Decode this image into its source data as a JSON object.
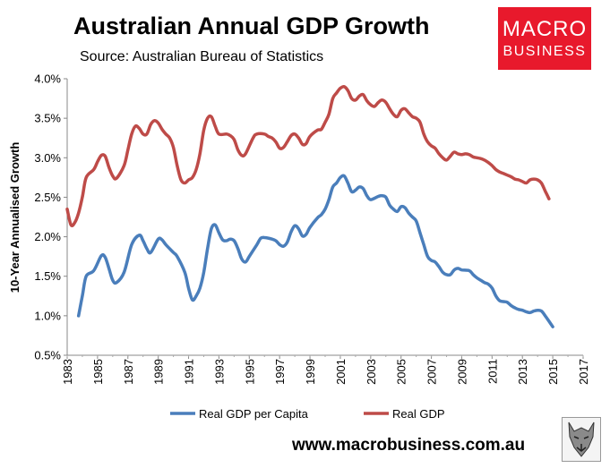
{
  "header": {
    "title": "Australian Annual GDP Growth",
    "subtitle": "Source: Australian Bureau of Statistics"
  },
  "logo": {
    "line1": "MACRO",
    "line2": "BUSINESS",
    "bg_color": "#e8192c"
  },
  "footer": {
    "url": "www.macrobusiness.com.au",
    "icon": "wolf-emblem-icon"
  },
  "chart_data": {
    "type": "line",
    "title": "",
    "xlabel": "",
    "ylabel": "10-Year Annualised Growth",
    "xlim": [
      1983,
      2017
    ],
    "ylim": [
      0.5,
      4.0
    ],
    "x_ticks": [
      "1983",
      "1985",
      "1987",
      "1989",
      "1991",
      "1993",
      "1995",
      "1997",
      "1999",
      "2001",
      "2003",
      "2005",
      "2007",
      "2009",
      "2011",
      "2013",
      "2015",
      "2017"
    ],
    "y_ticks": [
      "0.5%",
      "1.0%",
      "1.5%",
      "2.0%",
      "2.5%",
      "3.0%",
      "3.5%",
      "4.0%"
    ],
    "grid": false,
    "legend": "bottom",
    "series": [
      {
        "name": "Real GDP per Capita",
        "color": "#4a7ebb",
        "points": [
          [
            1983.75,
            1.0
          ],
          [
            1984.0,
            1.25
          ],
          [
            1984.25,
            1.5
          ],
          [
            1984.75,
            1.57
          ],
          [
            1985.25,
            1.76
          ],
          [
            1985.5,
            1.74
          ],
          [
            1985.75,
            1.6
          ],
          [
            1986.0,
            1.45
          ],
          [
            1986.25,
            1.42
          ],
          [
            1986.75,
            1.55
          ],
          [
            1987.25,
            1.9
          ],
          [
            1987.75,
            2.02
          ],
          [
            1988.0,
            1.95
          ],
          [
            1988.25,
            1.85
          ],
          [
            1988.5,
            1.8
          ],
          [
            1989.0,
            1.97
          ],
          [
            1989.25,
            1.96
          ],
          [
            1989.5,
            1.9
          ],
          [
            1990.0,
            1.8
          ],
          [
            1990.25,
            1.75
          ],
          [
            1990.75,
            1.55
          ],
          [
            1991.0,
            1.35
          ],
          [
            1991.25,
            1.2
          ],
          [
            1991.5,
            1.25
          ],
          [
            1991.75,
            1.35
          ],
          [
            1992.0,
            1.55
          ],
          [
            1992.25,
            1.85
          ],
          [
            1992.5,
            2.1
          ],
          [
            1992.75,
            2.15
          ],
          [
            1993.0,
            2.05
          ],
          [
            1993.25,
            1.96
          ],
          [
            1993.5,
            1.95
          ],
          [
            1993.75,
            1.97
          ],
          [
            1994.0,
            1.95
          ],
          [
            1994.25,
            1.85
          ],
          [
            1994.5,
            1.72
          ],
          [
            1994.75,
            1.68
          ],
          [
            1995.0,
            1.75
          ],
          [
            1995.5,
            1.9
          ],
          [
            1995.75,
            1.98
          ],
          [
            1996.0,
            1.99
          ],
          [
            1996.5,
            1.97
          ],
          [
            1996.75,
            1.95
          ],
          [
            1997.0,
            1.9
          ],
          [
            1997.25,
            1.88
          ],
          [
            1997.5,
            1.93
          ],
          [
            1997.75,
            2.06
          ],
          [
            1998.0,
            2.14
          ],
          [
            1998.25,
            2.1
          ],
          [
            1998.5,
            2.01
          ],
          [
            1998.75,
            2.03
          ],
          [
            1999.0,
            2.12
          ],
          [
            1999.5,
            2.24
          ],
          [
            1999.75,
            2.28
          ],
          [
            2000.0,
            2.35
          ],
          [
            2000.25,
            2.47
          ],
          [
            2000.5,
            2.63
          ],
          [
            2000.75,
            2.68
          ],
          [
            2001.0,
            2.75
          ],
          [
            2001.25,
            2.77
          ],
          [
            2001.5,
            2.68
          ],
          [
            2001.75,
            2.57
          ],
          [
            2002.0,
            2.59
          ],
          [
            2002.25,
            2.63
          ],
          [
            2002.5,
            2.61
          ],
          [
            2002.75,
            2.52
          ],
          [
            2003.0,
            2.47
          ],
          [
            2003.5,
            2.51
          ],
          [
            2003.75,
            2.52
          ],
          [
            2004.0,
            2.5
          ],
          [
            2004.25,
            2.4
          ],
          [
            2004.5,
            2.35
          ],
          [
            2004.75,
            2.32
          ],
          [
            2005.0,
            2.38
          ],
          [
            2005.25,
            2.37
          ],
          [
            2005.5,
            2.3
          ],
          [
            2005.75,
            2.25
          ],
          [
            2006.0,
            2.2
          ],
          [
            2006.25,
            2.05
          ],
          [
            2006.5,
            1.9
          ],
          [
            2006.75,
            1.75
          ],
          [
            2007.0,
            1.7
          ],
          [
            2007.25,
            1.68
          ],
          [
            2007.5,
            1.62
          ],
          [
            2007.75,
            1.55
          ],
          [
            2008.0,
            1.52
          ],
          [
            2008.25,
            1.52
          ],
          [
            2008.5,
            1.58
          ],
          [
            2008.75,
            1.6
          ],
          [
            2009.0,
            1.58
          ],
          [
            2009.5,
            1.57
          ],
          [
            2009.75,
            1.52
          ],
          [
            2010.0,
            1.48
          ],
          [
            2010.25,
            1.45
          ],
          [
            2010.5,
            1.42
          ],
          [
            2010.75,
            1.4
          ],
          [
            2011.0,
            1.35
          ],
          [
            2011.25,
            1.25
          ],
          [
            2011.5,
            1.19
          ],
          [
            2011.75,
            1.18
          ],
          [
            2012.0,
            1.17
          ],
          [
            2012.25,
            1.13
          ],
          [
            2012.5,
            1.1
          ],
          [
            2012.75,
            1.08
          ],
          [
            2013.0,
            1.07
          ],
          [
            2013.25,
            1.05
          ],
          [
            2013.5,
            1.04
          ],
          [
            2013.75,
            1.06
          ],
          [
            2014.0,
            1.07
          ],
          [
            2014.25,
            1.06
          ],
          [
            2014.5,
            1.0
          ],
          [
            2014.75,
            0.93
          ],
          [
            2015.0,
            0.86
          ]
        ]
      },
      {
        "name": "Real GDP",
        "color": "#be4b48",
        "points": [
          [
            1983.0,
            2.35
          ],
          [
            1983.25,
            2.15
          ],
          [
            1983.5,
            2.18
          ],
          [
            1983.75,
            2.3
          ],
          [
            1984.0,
            2.5
          ],
          [
            1984.25,
            2.75
          ],
          [
            1984.75,
            2.85
          ],
          [
            1985.0,
            2.95
          ],
          [
            1985.25,
            3.03
          ],
          [
            1985.5,
            3.02
          ],
          [
            1985.75,
            2.88
          ],
          [
            1986.0,
            2.77
          ],
          [
            1986.25,
            2.74
          ],
          [
            1986.75,
            2.9
          ],
          [
            1987.0,
            3.1
          ],
          [
            1987.25,
            3.3
          ],
          [
            1987.5,
            3.4
          ],
          [
            1987.75,
            3.37
          ],
          [
            1988.0,
            3.3
          ],
          [
            1988.25,
            3.3
          ],
          [
            1988.5,
            3.42
          ],
          [
            1988.75,
            3.47
          ],
          [
            1989.0,
            3.44
          ],
          [
            1989.25,
            3.36
          ],
          [
            1989.5,
            3.3
          ],
          [
            1989.75,
            3.25
          ],
          [
            1990.0,
            3.13
          ],
          [
            1990.25,
            2.9
          ],
          [
            1990.5,
            2.72
          ],
          [
            1990.75,
            2.68
          ],
          [
            1991.0,
            2.72
          ],
          [
            1991.25,
            2.75
          ],
          [
            1991.5,
            2.85
          ],
          [
            1991.75,
            3.05
          ],
          [
            1992.0,
            3.35
          ],
          [
            1992.25,
            3.5
          ],
          [
            1992.5,
            3.52
          ],
          [
            1992.75,
            3.4
          ],
          [
            1993.0,
            3.3
          ],
          [
            1993.5,
            3.3
          ],
          [
            1993.75,
            3.28
          ],
          [
            1994.0,
            3.23
          ],
          [
            1994.25,
            3.1
          ],
          [
            1994.5,
            3.03
          ],
          [
            1994.75,
            3.05
          ],
          [
            1995.25,
            3.25
          ],
          [
            1995.5,
            3.3
          ],
          [
            1996.0,
            3.3
          ],
          [
            1996.25,
            3.27
          ],
          [
            1996.5,
            3.25
          ],
          [
            1996.75,
            3.2
          ],
          [
            1997.0,
            3.12
          ],
          [
            1997.25,
            3.13
          ],
          [
            1997.5,
            3.2
          ],
          [
            1997.75,
            3.28
          ],
          [
            1998.0,
            3.3
          ],
          [
            1998.25,
            3.25
          ],
          [
            1998.5,
            3.17
          ],
          [
            1998.75,
            3.18
          ],
          [
            1999.0,
            3.27
          ],
          [
            1999.5,
            3.35
          ],
          [
            1999.75,
            3.36
          ],
          [
            2000.0,
            3.45
          ],
          [
            2000.25,
            3.55
          ],
          [
            2000.5,
            3.75
          ],
          [
            2000.75,
            3.82
          ],
          [
            2001.0,
            3.88
          ],
          [
            2001.25,
            3.9
          ],
          [
            2001.5,
            3.85
          ],
          [
            2001.75,
            3.75
          ],
          [
            2002.0,
            3.73
          ],
          [
            2002.25,
            3.78
          ],
          [
            2002.5,
            3.8
          ],
          [
            2002.75,
            3.72
          ],
          [
            2003.0,
            3.67
          ],
          [
            2003.25,
            3.65
          ],
          [
            2003.5,
            3.7
          ],
          [
            2003.75,
            3.73
          ],
          [
            2004.0,
            3.7
          ],
          [
            2004.25,
            3.62
          ],
          [
            2004.5,
            3.55
          ],
          [
            2004.75,
            3.52
          ],
          [
            2005.0,
            3.6
          ],
          [
            2005.25,
            3.62
          ],
          [
            2005.5,
            3.57
          ],
          [
            2005.75,
            3.52
          ],
          [
            2006.0,
            3.5
          ],
          [
            2006.25,
            3.45
          ],
          [
            2006.5,
            3.3
          ],
          [
            2006.75,
            3.2
          ],
          [
            2007.0,
            3.15
          ],
          [
            2007.25,
            3.12
          ],
          [
            2007.5,
            3.05
          ],
          [
            2007.75,
            3.0
          ],
          [
            2008.0,
            2.97
          ],
          [
            2008.25,
            3.02
          ],
          [
            2008.5,
            3.07
          ],
          [
            2008.75,
            3.05
          ],
          [
            2009.0,
            3.04
          ],
          [
            2009.25,
            3.05
          ],
          [
            2009.5,
            3.04
          ],
          [
            2009.75,
            3.01
          ],
          [
            2010.0,
            3.0
          ],
          [
            2010.25,
            2.99
          ],
          [
            2010.5,
            2.97
          ],
          [
            2010.75,
            2.94
          ],
          [
            2011.0,
            2.9
          ],
          [
            2011.25,
            2.85
          ],
          [
            2011.5,
            2.82
          ],
          [
            2011.75,
            2.8
          ],
          [
            2012.0,
            2.78
          ],
          [
            2012.25,
            2.76
          ],
          [
            2012.5,
            2.73
          ],
          [
            2012.75,
            2.72
          ],
          [
            2013.0,
            2.7
          ],
          [
            2013.25,
            2.68
          ],
          [
            2013.5,
            2.72
          ],
          [
            2013.75,
            2.73
          ],
          [
            2014.0,
            2.72
          ],
          [
            2014.25,
            2.68
          ],
          [
            2014.5,
            2.58
          ],
          [
            2014.75,
            2.48
          ]
        ]
      }
    ]
  }
}
